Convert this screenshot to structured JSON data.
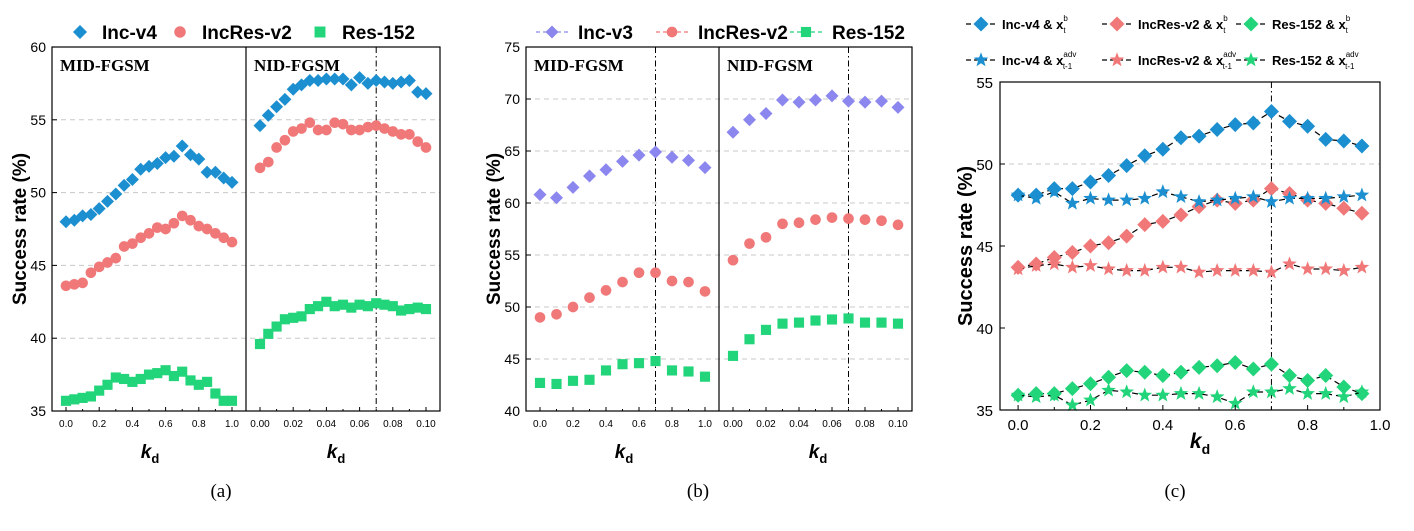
{
  "colors": {
    "inc_v4": "#1c8fd0",
    "inc_v3": "#8c87ee",
    "incres_v2": "#f07878",
    "res_152": "#22d47a",
    "axis": "#000000",
    "grid": "#c8c8c8"
  },
  "chart_data": [
    {
      "id": "a",
      "type": "scatter",
      "caption": "(a)",
      "legend": [
        "Inc-v4",
        "IncRes-v2",
        "Res-152"
      ],
      "ylabel": "Success rate (%)",
      "ylim": [
        35,
        60
      ],
      "yticks": [
        "35",
        "40",
        "45",
        "50",
        "55",
        "60"
      ],
      "grid": true,
      "panels": [
        {
          "title": "MID-FGSM",
          "xlabel": "k",
          "xlabel_sub": "d",
          "xlim": [
            0,
            1
          ],
          "xticks": [
            "0.0",
            "0.2",
            "0.4",
            "0.6",
            "0.8",
            "1.0"
          ],
          "x": [
            0,
            0.05,
            0.1,
            0.15,
            0.2,
            0.25,
            0.3,
            0.35,
            0.4,
            0.45,
            0.5,
            0.55,
            0.6,
            0.65,
            0.7,
            0.75,
            0.8,
            0.85,
            0.9,
            0.95,
            1.0
          ],
          "series": [
            {
              "name": "Inc-v4",
              "marker": "diamond",
              "values": [
                48.0,
                48.1,
                48.4,
                48.5,
                48.9,
                49.4,
                49.9,
                50.5,
                50.9,
                51.6,
                51.8,
                52.0,
                52.4,
                52.5,
                53.2,
                52.6,
                52.3,
                51.4,
                51.4,
                51.0,
                50.7
              ]
            },
            {
              "name": "IncRes-v2",
              "marker": "circle",
              "values": [
                43.6,
                43.7,
                43.8,
                44.5,
                44.9,
                45.2,
                45.5,
                46.3,
                46.5,
                46.9,
                47.2,
                47.6,
                47.5,
                47.9,
                48.4,
                48.1,
                47.7,
                47.5,
                47.2,
                46.9,
                46.6
              ]
            },
            {
              "name": "Res-152",
              "marker": "square",
              "values": [
                35.7,
                35.8,
                35.9,
                36.0,
                36.4,
                36.8,
                37.3,
                37.2,
                37.0,
                37.2,
                37.5,
                37.6,
                37.8,
                37.4,
                37.7,
                37.1,
                36.8,
                37.0,
                36.2,
                35.7,
                35.7
              ]
            }
          ]
        },
        {
          "title": "NID-FGSM",
          "xlabel": "k",
          "xlabel_sub": "d",
          "xlim": [
            0,
            0.1
          ],
          "xticks": [
            "0.00",
            "0.02",
            "0.04",
            "0.06",
            "0.08",
            "0.10"
          ],
          "vline": 0.07,
          "x": [
            0,
            0.005,
            0.01,
            0.015,
            0.02,
            0.025,
            0.03,
            0.035,
            0.04,
            0.045,
            0.05,
            0.055,
            0.06,
            0.065,
            0.07,
            0.075,
            0.08,
            0.085,
            0.09,
            0.095,
            0.1
          ],
          "series": [
            {
              "name": "Inc-v4",
              "marker": "diamond",
              "values": [
                54.6,
                55.3,
                55.9,
                56.4,
                57.1,
                57.4,
                57.7,
                57.7,
                57.8,
                57.8,
                57.8,
                57.4,
                57.9,
                57.5,
                57.7,
                57.6,
                57.5,
                57.6,
                57.7,
                56.9,
                56.8
              ]
            },
            {
              "name": "IncRes-v2",
              "marker": "circle",
              "values": [
                51.7,
                52.1,
                53.1,
                53.6,
                54.2,
                54.4,
                54.8,
                54.3,
                54.3,
                54.8,
                54.7,
                54.3,
                54.3,
                54.5,
                54.6,
                54.4,
                54.2,
                54.0,
                54.0,
                53.5,
                53.1
              ]
            },
            {
              "name": "Res-152",
              "marker": "square",
              "values": [
                39.6,
                40.3,
                40.8,
                41.3,
                41.4,
                41.5,
                42.0,
                42.2,
                42.5,
                42.2,
                42.3,
                42.1,
                42.3,
                42.2,
                42.4,
                42.3,
                42.2,
                41.9,
                42.0,
                42.1,
                42.0
              ]
            }
          ]
        }
      ]
    },
    {
      "id": "b",
      "type": "scatter",
      "caption": "(b)",
      "legend": [
        "Inc-v3",
        "IncRes-v2",
        "Res-152"
      ],
      "ylabel": "Success rate (%)",
      "ylim": [
        40,
        75
      ],
      "yticks": [
        "40",
        "45",
        "50",
        "55",
        "60",
        "65",
        "70",
        "75"
      ],
      "grid": true,
      "panels": [
        {
          "title": "MID-FGSM",
          "xlabel": "k",
          "xlabel_sub": "d",
          "xlim": [
            0,
            1
          ],
          "xticks": [
            "0.0",
            "0.2",
            "0.4",
            "0.6",
            "0.8",
            "1.0"
          ],
          "vline": 0.7,
          "x": [
            0,
            0.1,
            0.2,
            0.3,
            0.4,
            0.5,
            0.6,
            0.7,
            0.8,
            0.9,
            1.0
          ],
          "series": [
            {
              "name": "Inc-v3",
              "marker": "diamond",
              "values": [
                60.8,
                60.5,
                61.5,
                62.6,
                63.2,
                64.0,
                64.6,
                64.9,
                64.4,
                64.1,
                63.4
              ]
            },
            {
              "name": "IncRes-v2",
              "marker": "circle",
              "values": [
                49.0,
                49.3,
                50.0,
                50.9,
                51.6,
                52.4,
                53.3,
                53.3,
                52.5,
                52.4,
                51.5
              ]
            },
            {
              "name": "Res-152",
              "marker": "square",
              "values": [
                42.7,
                42.6,
                42.9,
                43.0,
                43.9,
                44.5,
                44.6,
                44.8,
                43.9,
                43.8,
                43.3
              ]
            }
          ]
        },
        {
          "title": "NID-FGSM",
          "xlabel": "k",
          "xlabel_sub": "d",
          "xlim": [
            0,
            0.1
          ],
          "xticks": [
            "0.00",
            "0.02",
            "0.04",
            "0.06",
            "0.08",
            "0.10"
          ],
          "vline": 0.07,
          "x": [
            0,
            0.01,
            0.02,
            0.03,
            0.04,
            0.05,
            0.06,
            0.07,
            0.08,
            0.09,
            0.1
          ],
          "series": [
            {
              "name": "Inc-v3",
              "marker": "diamond",
              "values": [
                66.8,
                68.0,
                68.6,
                69.9,
                69.7,
                69.9,
                70.3,
                69.8,
                69.7,
                69.8,
                69.2
              ]
            },
            {
              "name": "IncRes-v2",
              "marker": "circle",
              "values": [
                54.5,
                56.1,
                56.7,
                58.0,
                58.1,
                58.4,
                58.6,
                58.5,
                58.4,
                58.3,
                57.9
              ]
            },
            {
              "name": "Res-152",
              "marker": "square",
              "values": [
                45.3,
                46.9,
                47.8,
                48.4,
                48.5,
                48.7,
                48.8,
                48.9,
                48.5,
                48.5,
                48.4
              ]
            }
          ]
        }
      ]
    },
    {
      "id": "c",
      "type": "line",
      "caption": "(c)",
      "ylabel": "Success rate (%)",
      "xlabel": "k",
      "xlabel_sub": "d",
      "xlim": [
        -0.05,
        1.0
      ],
      "ylim": [
        35,
        55
      ],
      "xticks": [
        "0.0",
        "0.2",
        "0.4",
        "0.6",
        "0.8",
        "1.0"
      ],
      "yticks": [
        "35",
        "40",
        "45",
        "50",
        "55"
      ],
      "vline": 0.7,
      "hgrid_at": [
        50
      ],
      "x": [
        0,
        0.05,
        0.1,
        0.15,
        0.2,
        0.25,
        0.3,
        0.35,
        0.4,
        0.45,
        0.5,
        0.55,
        0.6,
        0.65,
        0.7,
        0.75,
        0.8,
        0.85,
        0.9,
        0.95
      ],
      "series": [
        {
          "name": "Inc-v4 & x",
          "sup": "b",
          "sub": "t",
          "marker": "diamond",
          "color": "#1c8fd0",
          "values": [
            48.1,
            48.1,
            48.5,
            48.5,
            48.9,
            49.3,
            49.9,
            50.5,
            50.9,
            51.6,
            51.7,
            52.1,
            52.4,
            52.5,
            53.2,
            52.6,
            52.3,
            51.5,
            51.4,
            51.1
          ]
        },
        {
          "name": "IncRes-v2 & x",
          "sup": "b",
          "sub": "t",
          "marker": "diamond",
          "color": "#f07878",
          "values": [
            43.7,
            43.9,
            44.3,
            44.6,
            45.0,
            45.2,
            45.6,
            46.3,
            46.5,
            46.9,
            47.4,
            47.8,
            47.6,
            47.8,
            48.5,
            48.2,
            47.8,
            47.6,
            47.3,
            47.0
          ]
        },
        {
          "name": "Res-152 & x",
          "sup": "b",
          "sub": "t",
          "marker": "diamond",
          "color": "#22d47a",
          "values": [
            35.9,
            36.0,
            36.0,
            36.3,
            36.6,
            37.0,
            37.4,
            37.3,
            37.1,
            37.3,
            37.6,
            37.7,
            37.9,
            37.5,
            37.8,
            37.1,
            36.8,
            37.1,
            36.4,
            36.0
          ]
        },
        {
          "name": "Inc-v4 & x",
          "sup": "adv",
          "sub": "t-1",
          "marker": "star",
          "color": "#1c8fd0",
          "values": [
            48.1,
            47.9,
            48.3,
            47.6,
            47.9,
            47.8,
            47.8,
            47.9,
            48.3,
            48.0,
            47.7,
            47.8,
            47.9,
            48.0,
            47.7,
            47.9,
            47.9,
            47.9,
            48.0,
            48.1
          ]
        },
        {
          "name": "IncRes-v2 & x",
          "sup": "adv",
          "sub": "t-1",
          "marker": "star",
          "color": "#f07878",
          "values": [
            43.6,
            43.8,
            43.9,
            43.7,
            43.8,
            43.6,
            43.5,
            43.5,
            43.7,
            43.7,
            43.4,
            43.5,
            43.5,
            43.5,
            43.4,
            43.9,
            43.6,
            43.6,
            43.5,
            43.7
          ]
        },
        {
          "name": "Res-152 & x",
          "sup": "adv",
          "sub": "t-1",
          "marker": "star",
          "color": "#22d47a",
          "values": [
            35.9,
            35.8,
            35.9,
            35.3,
            35.6,
            36.2,
            36.1,
            35.9,
            35.9,
            36.0,
            36.0,
            35.8,
            35.4,
            36.1,
            36.1,
            36.3,
            36.0,
            36.0,
            35.8,
            36.1
          ]
        }
      ]
    }
  ]
}
